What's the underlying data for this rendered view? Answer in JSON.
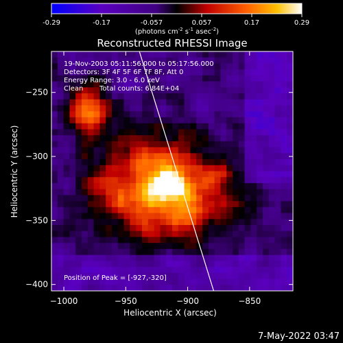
{
  "colorbar": {
    "ticks": [
      "-0.29",
      "-0.17",
      "-0.057",
      "0.057",
      "0.17",
      "0.29"
    ],
    "units": "(photons cm",
    "units_exp1": "-2",
    "units_mid": " s",
    "units_exp2": "-1",
    "units_end": " asec",
    "units_exp3": "-2",
    "units_close": ")",
    "range": [
      -0.29,
      0.29
    ]
  },
  "chart_data": {
    "type": "heatmap",
    "title": "Reconstructed RHESSI Image",
    "xlabel": "Heliocentric X (arcsec)",
    "ylabel": "Heliocentric Y (arcsec)",
    "xlim": [
      -1010,
      -815
    ],
    "ylim": [
      -405,
      -218
    ],
    "xticks": [
      {
        "value": -1000,
        "label": "−1000"
      },
      {
        "value": -950,
        "label": "−950"
      },
      {
        "value": -900,
        "label": "−900"
      },
      {
        "value": -850,
        "label": "−850"
      }
    ],
    "yticks": [
      {
        "value": -250,
        "label": "−250"
      },
      {
        "value": -300,
        "label": "−300"
      },
      {
        "value": -350,
        "label": "−350"
      },
      {
        "value": -400,
        "label": "−400"
      }
    ],
    "limb_line": {
      "x": [
        -939,
        -879
      ],
      "y": [
        -218,
        -405
      ]
    },
    "peak": {
      "x": -927,
      "y": -320
    }
  },
  "annotations": {
    "line1": "19-Nov-2003 05:11:56.000 to 05:17:56.000",
    "line2": "Detectors: 3F 4F 5F 6F 7F 8F, Att 0",
    "line3": "Energy Range: 3.0 - 6.0 keV",
    "line4_a": "Clean",
    "line4_b": "Total counts: 6.84E+04",
    "peak": "Position of Peak = [-927,-320]"
  },
  "footer": {
    "date": "7-May-2022 03:47"
  }
}
